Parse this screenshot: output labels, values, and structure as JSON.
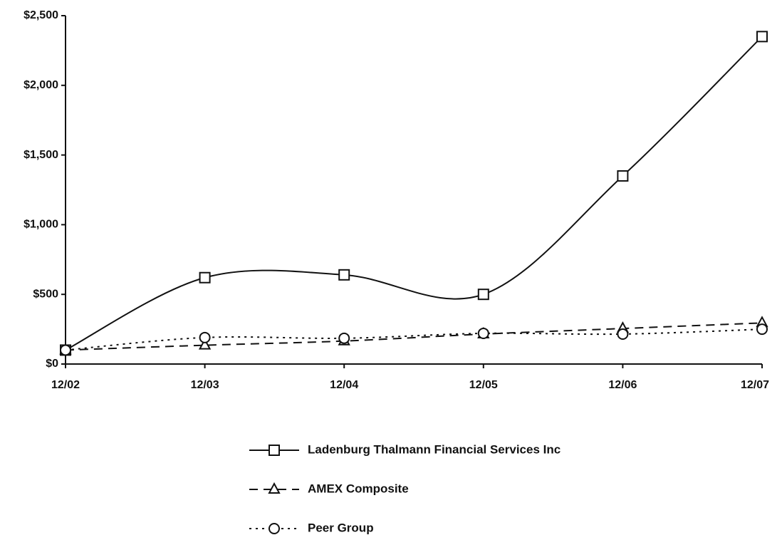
{
  "chart_data": {
    "type": "line",
    "categories": [
      "12/02",
      "12/03",
      "12/04",
      "12/05",
      "12/06",
      "12/07"
    ],
    "series": [
      {
        "name": "Ladenburg Thalmann Financial Services Inc",
        "color": "#111111",
        "values": [
          100,
          620,
          640,
          500,
          1350,
          2350
        ]
      },
      {
        "name": "AMEX Composite",
        "color": "#111111",
        "values": [
          100,
          135,
          165,
          215,
          255,
          295
        ]
      },
      {
        "name": "Peer Group",
        "color": "#111111",
        "values": [
          100,
          190,
          185,
          220,
          215,
          250
        ]
      }
    ],
    "ylim": [
      0,
      2500
    ],
    "yticks": [
      {
        "value": 0,
        "label": "$0"
      },
      {
        "value": 500,
        "label": "$500"
      },
      {
        "value": 1000,
        "label": "$1,000"
      },
      {
        "value": 1500,
        "label": "$1,500"
      },
      {
        "value": 2000,
        "label": "$2,000"
      },
      {
        "value": 2500,
        "label": "$2,500"
      }
    ],
    "grid": false,
    "legend": "bottom"
  }
}
